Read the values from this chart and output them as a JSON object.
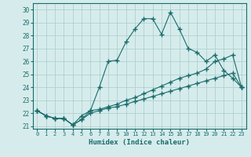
{
  "xlabel": "Humidex (Indice chaleur)",
  "bg_color": "#d6ecec",
  "grid_color": "#b0d0d0",
  "line_color": "#1a6b6b",
  "ylim": [
    20.8,
    30.5
  ],
  "xlim": [
    -0.5,
    23.5
  ],
  "yticks": [
    21,
    22,
    23,
    24,
    25,
    26,
    27,
    28,
    29,
    30
  ],
  "xticks": [
    0,
    1,
    2,
    3,
    4,
    5,
    6,
    7,
    8,
    9,
    10,
    11,
    12,
    13,
    14,
    15,
    16,
    17,
    18,
    19,
    20,
    21,
    22,
    23
  ],
  "series1_x": [
    0,
    1,
    2,
    3,
    4,
    5,
    6,
    7,
    8,
    9,
    10,
    11,
    12,
    13,
    14,
    15,
    16,
    17,
    18,
    19,
    20,
    21,
    22,
    23
  ],
  "series1_y": [
    22.2,
    21.8,
    21.6,
    21.6,
    21.1,
    21.5,
    22.2,
    24.0,
    26.0,
    26.1,
    27.5,
    28.5,
    29.3,
    29.3,
    28.1,
    29.8,
    28.5,
    27.0,
    26.7,
    26.0,
    26.5,
    25.3,
    24.7,
    24.0
  ],
  "series2_x": [
    0,
    1,
    2,
    3,
    4,
    5,
    6,
    7,
    8,
    9,
    10,
    11,
    12,
    13,
    14,
    15,
    16,
    17,
    18,
    19,
    20,
    21,
    22,
    23
  ],
  "series2_y": [
    22.2,
    21.8,
    21.6,
    21.6,
    21.1,
    21.8,
    22.2,
    22.3,
    22.5,
    22.7,
    23.0,
    23.2,
    23.5,
    23.8,
    24.1,
    24.4,
    24.7,
    24.9,
    25.1,
    25.4,
    26.0,
    26.2,
    26.5,
    24.0
  ],
  "series3_x": [
    0,
    1,
    2,
    3,
    4,
    5,
    6,
    7,
    8,
    9,
    10,
    11,
    12,
    13,
    14,
    15,
    16,
    17,
    18,
    19,
    20,
    21,
    22,
    23
  ],
  "series3_y": [
    22.2,
    21.8,
    21.6,
    21.6,
    21.1,
    21.5,
    22.0,
    22.2,
    22.4,
    22.5,
    22.7,
    22.9,
    23.1,
    23.3,
    23.5,
    23.7,
    23.9,
    24.1,
    24.3,
    24.5,
    24.7,
    24.9,
    25.1,
    24.0
  ]
}
